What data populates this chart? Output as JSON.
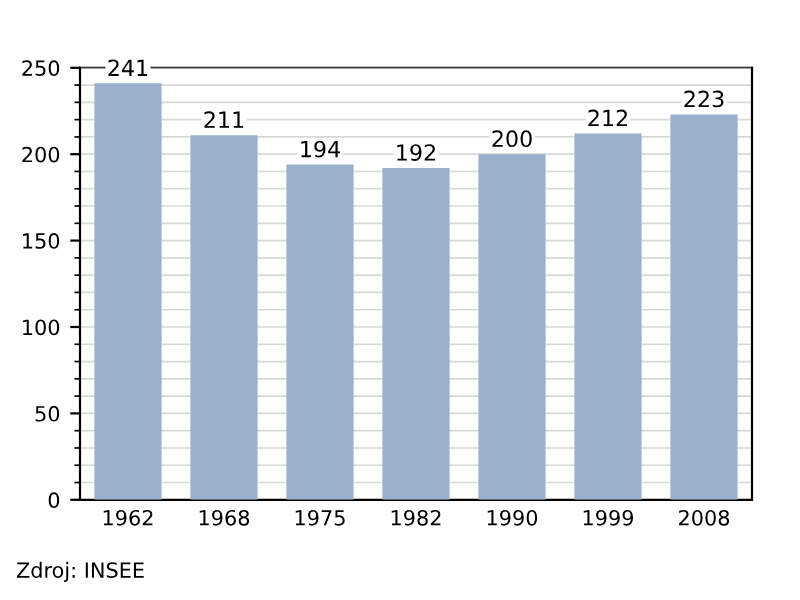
{
  "chart_data": {
    "type": "bar",
    "categories": [
      "1962",
      "1968",
      "1975",
      "1982",
      "1990",
      "1999",
      "2008"
    ],
    "values": [
      241,
      211,
      194,
      192,
      200,
      212,
      223
    ],
    "color": "#9ab0cc",
    "ylim": [
      0,
      250
    ],
    "yticks": [
      0,
      50,
      100,
      150,
      200,
      250
    ],
    "grid": "y",
    "data_labels": true,
    "annotations": [
      "Zdroj: INSEE"
    ]
  }
}
